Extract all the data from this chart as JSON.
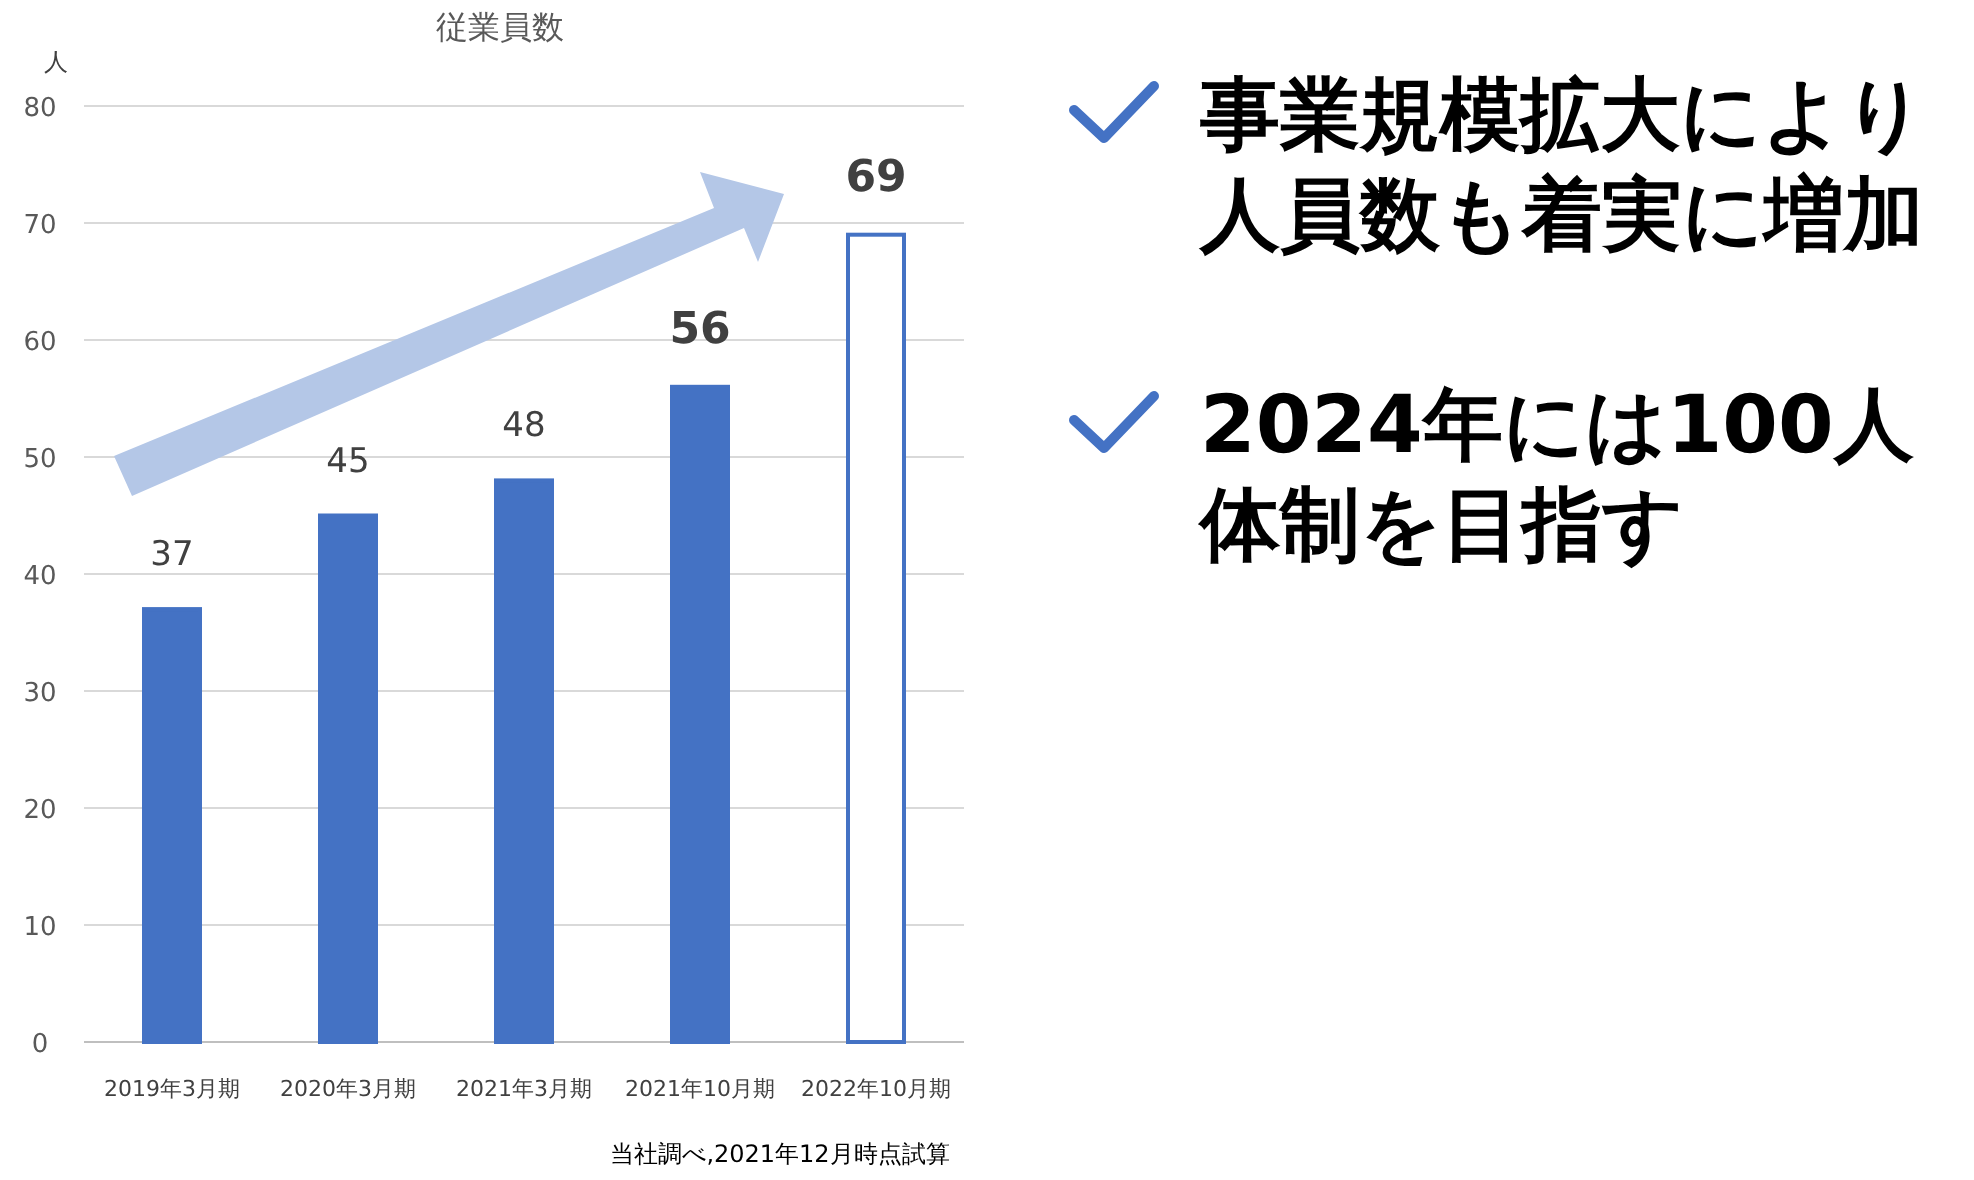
{
  "chart_data": {
    "type": "bar",
    "title": "従業員数",
    "ylabel": "人",
    "categories": [
      "2019年3月期",
      "2020年3月期",
      "2021年3月期",
      "2021年10月期",
      "2022年10月期"
    ],
    "values": [
      37,
      45,
      48,
      56,
      69
    ],
    "colors": [
      "#4472c4",
      "#4472c4",
      "#4472c4",
      "#4472c4",
      "#ffffff"
    ],
    "ylim": [
      0,
      80
    ],
    "yticks": [
      0,
      10,
      20,
      30,
      40,
      50,
      60,
      70,
      80
    ],
    "grid": "y",
    "data_labels": true,
    "annotations": [
      "当社調べ,2021年12月時点試算",
      "事業規模拡大により人員数も着実に増加",
      "2024年には100人体制を目指す"
    ]
  }
}
